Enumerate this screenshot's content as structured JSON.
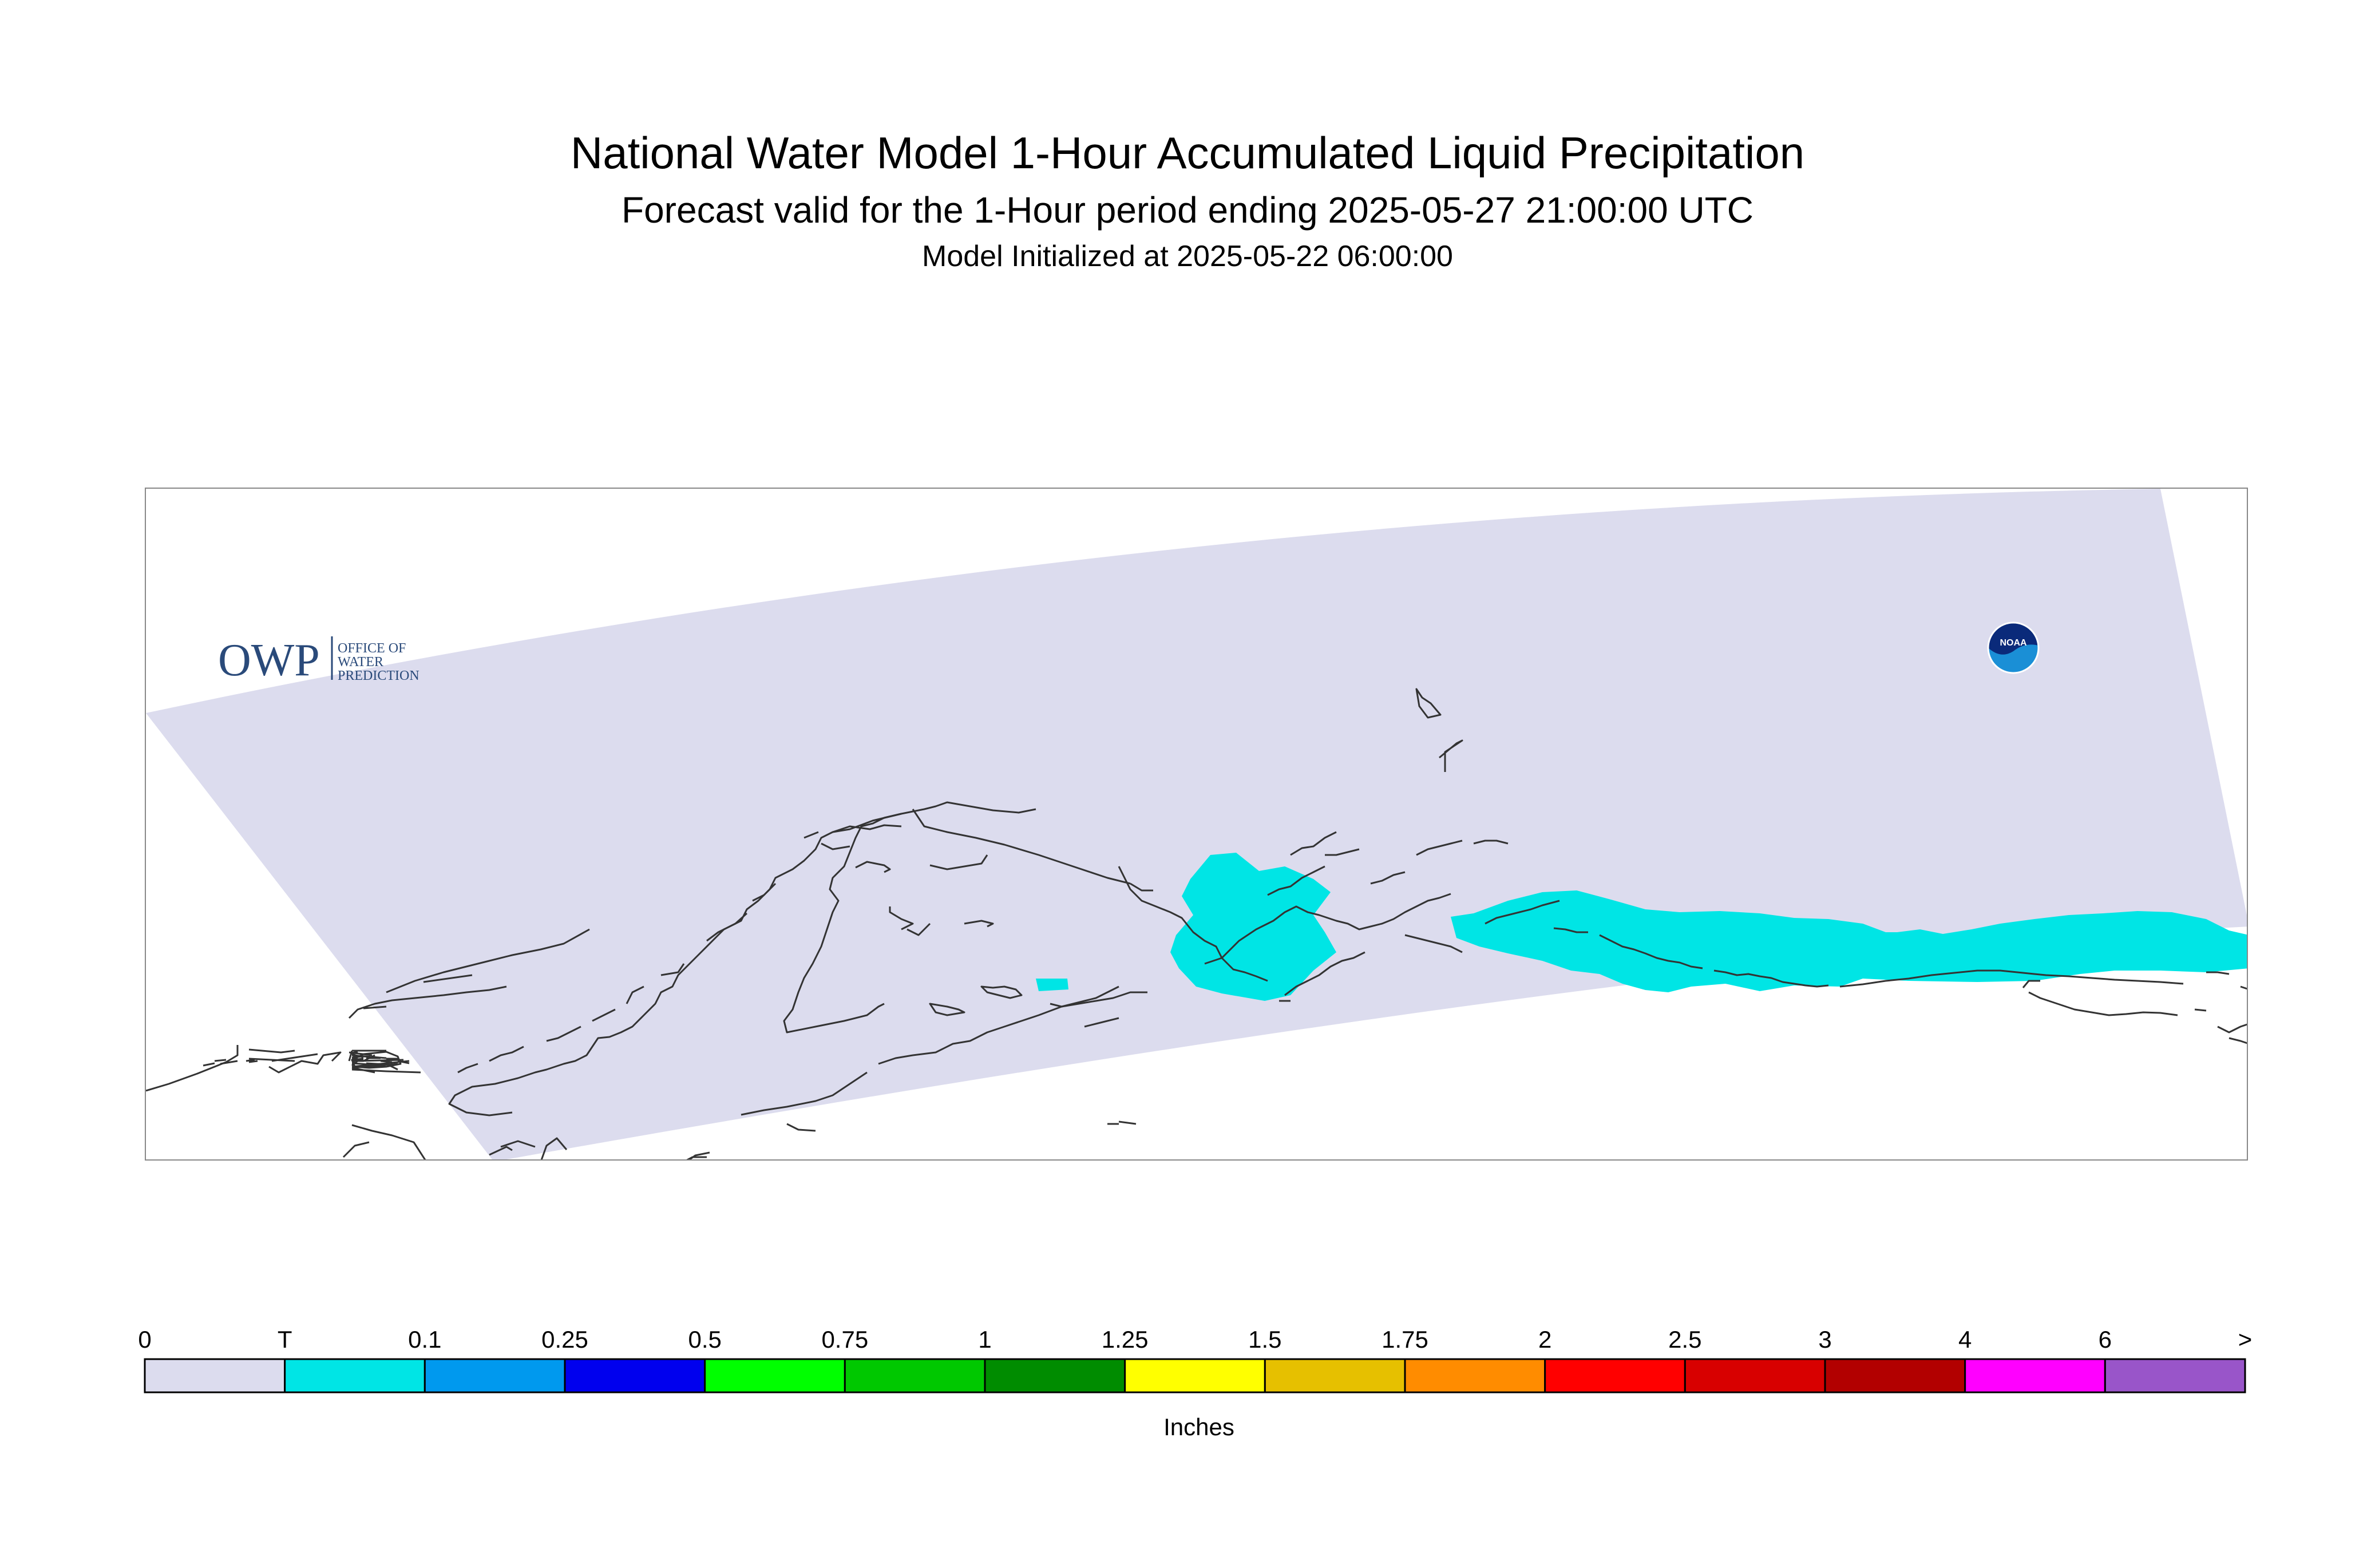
{
  "header": {
    "title": "National Water Model 1-Hour Accumulated Liquid Precipitation",
    "subtitle": "Forecast valid for the 1-Hour period ending 2025-05-27 21:00:00 UTC",
    "init": "Model Initialized at 2025-05-22 06:00:00"
  },
  "map": {
    "domain_color": "#dcdcee",
    "precip_color": "#00e5e5",
    "coast_color": "#333333"
  },
  "logos": {
    "owp_text": "OWP",
    "owp_line1": "OFFICE OF",
    "owp_line2": "WATER",
    "owp_line3": "PREDICTION",
    "noaa_text": "NOAA"
  },
  "legend": {
    "units": "Inches",
    "tick_labels": [
      "0",
      "T",
      "0.1",
      "0.25",
      "0.5",
      "0.75",
      "1",
      "1.25",
      "1.5",
      "1.75",
      "2",
      "2.5",
      "3",
      "4",
      "6",
      ">"
    ],
    "colors": [
      "#dcdcee",
      "#00e5e5",
      "#0099ee",
      "#0000ee",
      "#00ff00",
      "#00c800",
      "#008c00",
      "#ffff00",
      "#e6c000",
      "#ff8c00",
      "#ff0000",
      "#d80000",
      "#b20000",
      "#ff00ff",
      "#9955c9"
    ]
  }
}
